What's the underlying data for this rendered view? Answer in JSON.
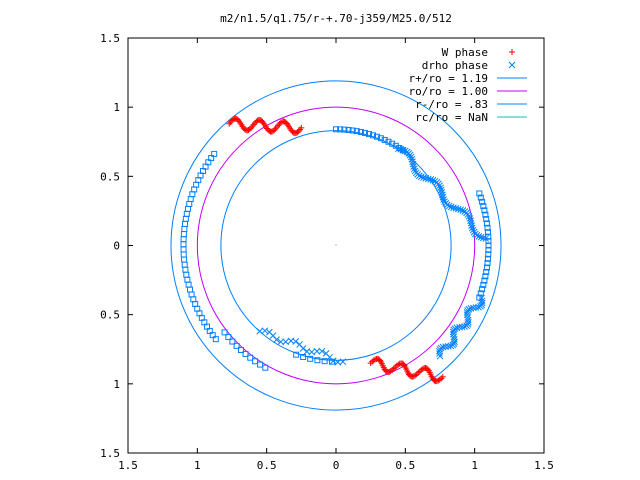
{
  "chart_data": {
    "type": "scatter",
    "title": "m2/n1.5/q1.75/r-+.70-j359/M25.0/512",
    "xlim": [
      -1.5,
      1.5
    ],
    "ylim": [
      -1.5,
      1.5
    ],
    "x_ticks": [
      -1.5,
      -1,
      -0.5,
      0,
      0.5,
      1,
      1.5
    ],
    "x_tick_labels": [
      "1.5",
      "1",
      "0.5",
      "0",
      "0.5",
      "1",
      "1.5"
    ],
    "y_ticks": [
      1.5,
      1,
      0.5,
      0,
      -0.5,
      -1,
      -1.5
    ],
    "y_tick_labels": [
      "1.5",
      "1",
      "0.5",
      "0",
      "0.5",
      "1",
      "1.5"
    ],
    "grid": false,
    "legend_position": "top-right",
    "colors": {
      "red": "#ff0000",
      "blue": "#0080ff",
      "magenta": "#c000ff",
      "cyan": "#00c0c0"
    },
    "series": [
      {
        "name": "W phase",
        "kind": "points",
        "marker": "plus",
        "color": "#ff0000",
        "segments": [
          {
            "from": [
              -0.77,
              0.88
            ],
            "to": [
              -0.25,
              0.85
            ],
            "wiggle": 0.04,
            "n": 60
          },
          {
            "from": [
              0.25,
              -0.85
            ],
            "to": [
              0.77,
              -0.95
            ],
            "wiggle": 0.04,
            "n": 60
          }
        ]
      },
      {
        "name": "drho phase",
        "kind": "points",
        "marker": "cross",
        "color": "#0080ff",
        "segments": [
          {
            "from": [
              0.45,
              0.7
            ],
            "to": [
              1.08,
              0.05
            ],
            "wiggle": 0.03,
            "n": 60
          },
          {
            "from": [
              -0.55,
              -0.62
            ],
            "to": [
              0.05,
              -0.84
            ],
            "wiggle": 0.02,
            "n": 20
          },
          {
            "from": [
              0.75,
              -0.8
            ],
            "to": [
              1.05,
              -0.38
            ],
            "wiggle": 0.03,
            "n": 40
          }
        ]
      },
      {
        "name": "squares",
        "kind": "points",
        "marker": "square",
        "color": "#0080ff",
        "in_legend": false,
        "arcs": [
          {
            "r": 0.84,
            "a0": 90,
            "a1": 55,
            "n": 18
          },
          {
            "r": 1.1,
            "a0": 143,
            "a1": 218,
            "n": 40
          },
          {
            "r": 1.02,
            "a0": 218,
            "a1": 240,
            "n": 10
          },
          {
            "r": 1.1,
            "a0": 20,
            "a1": -20,
            "n": 25
          },
          {
            "r": 0.84,
            "a0": 250,
            "a1": 268,
            "n": 6
          }
        ]
      },
      {
        "name": "r+/ro = 1.19",
        "kind": "circle",
        "r": 1.19,
        "color": "#0080ff"
      },
      {
        "name": "ro/ro = 1.00",
        "kind": "circle",
        "r": 1.0,
        "color": "#c000ff"
      },
      {
        "name": "r-/ro = .83",
        "kind": "circle",
        "r": 0.83,
        "color": "#0080ff"
      },
      {
        "name": "rc/ro = NaN",
        "kind": "circle",
        "r": null,
        "color": "#00c0c0"
      }
    ],
    "legend": [
      {
        "label": "W phase",
        "marker": "plus",
        "color": "#ff0000"
      },
      {
        "label": "drho phase",
        "marker": "cross",
        "color": "#0080ff"
      },
      {
        "label": "r+/ro = 1.19",
        "marker": "line",
        "color": "#0080ff"
      },
      {
        "label": "ro/ro = 1.00",
        "marker": "line",
        "color": "#c000ff"
      },
      {
        "label": "r-/ro = .83",
        "marker": "line",
        "color": "#0080ff"
      },
      {
        "label": "rc/ro = NaN",
        "marker": "line",
        "color": "#00c0c0"
      }
    ]
  }
}
